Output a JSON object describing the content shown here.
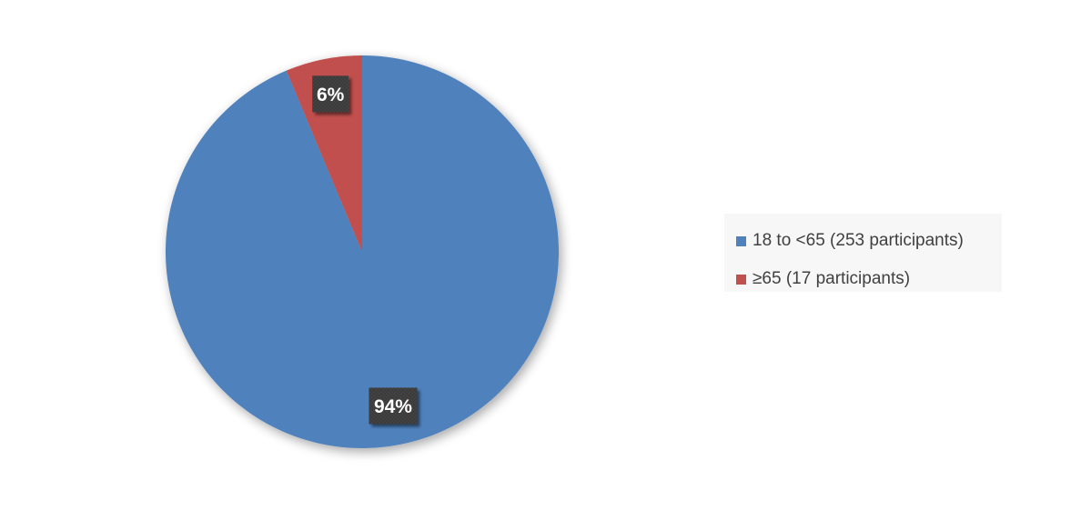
{
  "chart_data": {
    "type": "pie",
    "title": "",
    "slices": [
      {
        "label": "18 to <65 (253 participants)",
        "value": 253,
        "percent_label": "94%",
        "color": "#4F81BD"
      },
      {
        "label": "≥65 (17 participants)",
        "value": 17,
        "percent_label": "6%",
        "color": "#C0504D"
      }
    ],
    "start_angle_deg": 0,
    "direction": "clockwise",
    "legend_position": "right",
    "data_labels": true
  }
}
